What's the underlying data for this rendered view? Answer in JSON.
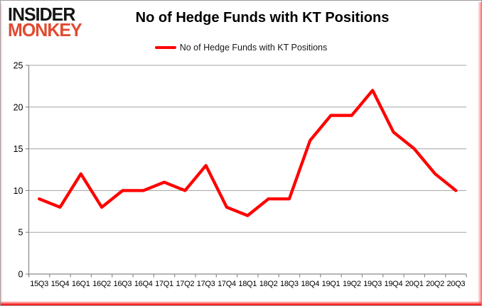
{
  "logo": {
    "line1": "INSIDER",
    "line2": "MONKEY"
  },
  "header": {
    "title": "No of Hedge Funds with KT Positions"
  },
  "legend": {
    "label": "No of Hedge Funds with KT Positions"
  },
  "colors": {
    "series_line": "#ff0000",
    "logo_red": "#e04b31",
    "glow_red": "#fb0007",
    "gridline": "#a3a3a3",
    "axis": "#898989",
    "tick_label": "#000000"
  },
  "chart_data": {
    "type": "line",
    "title": "No of Hedge Funds with KT Positions",
    "categories": [
      "15Q3",
      "15Q4",
      "16Q1",
      "16Q2",
      "16Q3",
      "16Q4",
      "17Q1",
      "17Q2",
      "17Q3",
      "17Q4",
      "18Q1",
      "18Q2",
      "18Q3",
      "18Q4",
      "19Q1",
      "19Q2",
      "19Q3",
      "19Q4",
      "20Q1",
      "20Q2",
      "20Q3"
    ],
    "series": [
      {
        "name": "No of Hedge Funds with KT Positions",
        "color": "#ff0000",
        "values": [
          9,
          8,
          12,
          8,
          10,
          10,
          11,
          10,
          13,
          8,
          7,
          9,
          9,
          16,
          19,
          19,
          22,
          17,
          15,
          12,
          10
        ]
      }
    ],
    "xlabel": "",
    "ylabel": "",
    "ylim": [
      0,
      25
    ],
    "yticks": [
      0,
      5,
      10,
      15,
      20,
      25
    ],
    "grid": "horizontal-only",
    "legend_position": "top-center"
  }
}
